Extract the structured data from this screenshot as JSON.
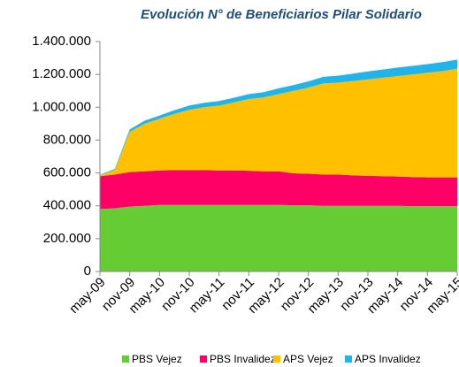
{
  "chart_data": {
    "type": "stacked_area",
    "title": "Evolución N° de Beneficiarios Pilar Solidario",
    "categories": [
      "may-09",
      null,
      "nov-09",
      null,
      "may-10",
      null,
      "nov-10",
      null,
      "may-11",
      null,
      "nov-11",
      null,
      "may-12",
      null,
      "nov-12",
      null,
      "may-13",
      null,
      "nov-13",
      null,
      "may-14",
      null,
      "nov-14",
      null,
      "may-15"
    ],
    "series": [
      {
        "name": "PBS Vejez",
        "color": "#66cc33",
        "values": [
          380000,
          385000,
          395000,
          400000,
          405000,
          405000,
          405000,
          405000,
          405000,
          405000,
          405000,
          405000,
          405000,
          403000,
          403000,
          400000,
          400000,
          400000,
          400000,
          400000,
          400000,
          398000,
          398000,
          398000,
          398000
        ]
      },
      {
        "name": "PBS Invalidez",
        "color": "#ff0066",
        "values": [
          200000,
          205000,
          210000,
          210000,
          210000,
          212000,
          212000,
          212000,
          210000,
          210000,
          208000,
          205000,
          205000,
          195000,
          192000,
          190000,
          190000,
          185000,
          182000,
          180000,
          178000,
          177000,
          175000,
          175000,
          175000
        ]
      },
      {
        "name": "APS Vejez",
        "color": "#ffc000",
        "values": [
          5000,
          30000,
          245000,
          290000,
          315000,
          343000,
          368000,
          383000,
          395000,
          415000,
          437000,
          450000,
          470000,
          502000,
          525000,
          555000,
          560000,
          575000,
          588000,
          600000,
          612000,
          625000,
          637000,
          647000,
          662000
        ]
      },
      {
        "name": "APS Invalidez",
        "color": "#1fb5ec",
        "values": [
          3000,
          5000,
          15000,
          18000,
          20000,
          22000,
          25000,
          27000,
          28000,
          28000,
          30000,
          32000,
          35000,
          35000,
          38000,
          40000,
          42000,
          45000,
          48000,
          50000,
          52000,
          52000,
          53000,
          55000,
          55000
        ]
      }
    ],
    "ylim": [
      0,
      1400000
    ],
    "yticks": [
      0,
      {
        "value": 200000,
        "label": "200.000"
      },
      {
        "value": 400000,
        "label": "400.000"
      },
      {
        "value": 600000,
        "label": "600.000"
      },
      {
        "value": 800000,
        "label": "800.000"
      },
      {
        "value": 1000000,
        "label": "1.000.000"
      },
      {
        "value": 1200000,
        "label": "1.200.000"
      },
      {
        "value": 1400000,
        "label": "1.400.000"
      }
    ],
    "legend": "bottom",
    "grid": false
  }
}
